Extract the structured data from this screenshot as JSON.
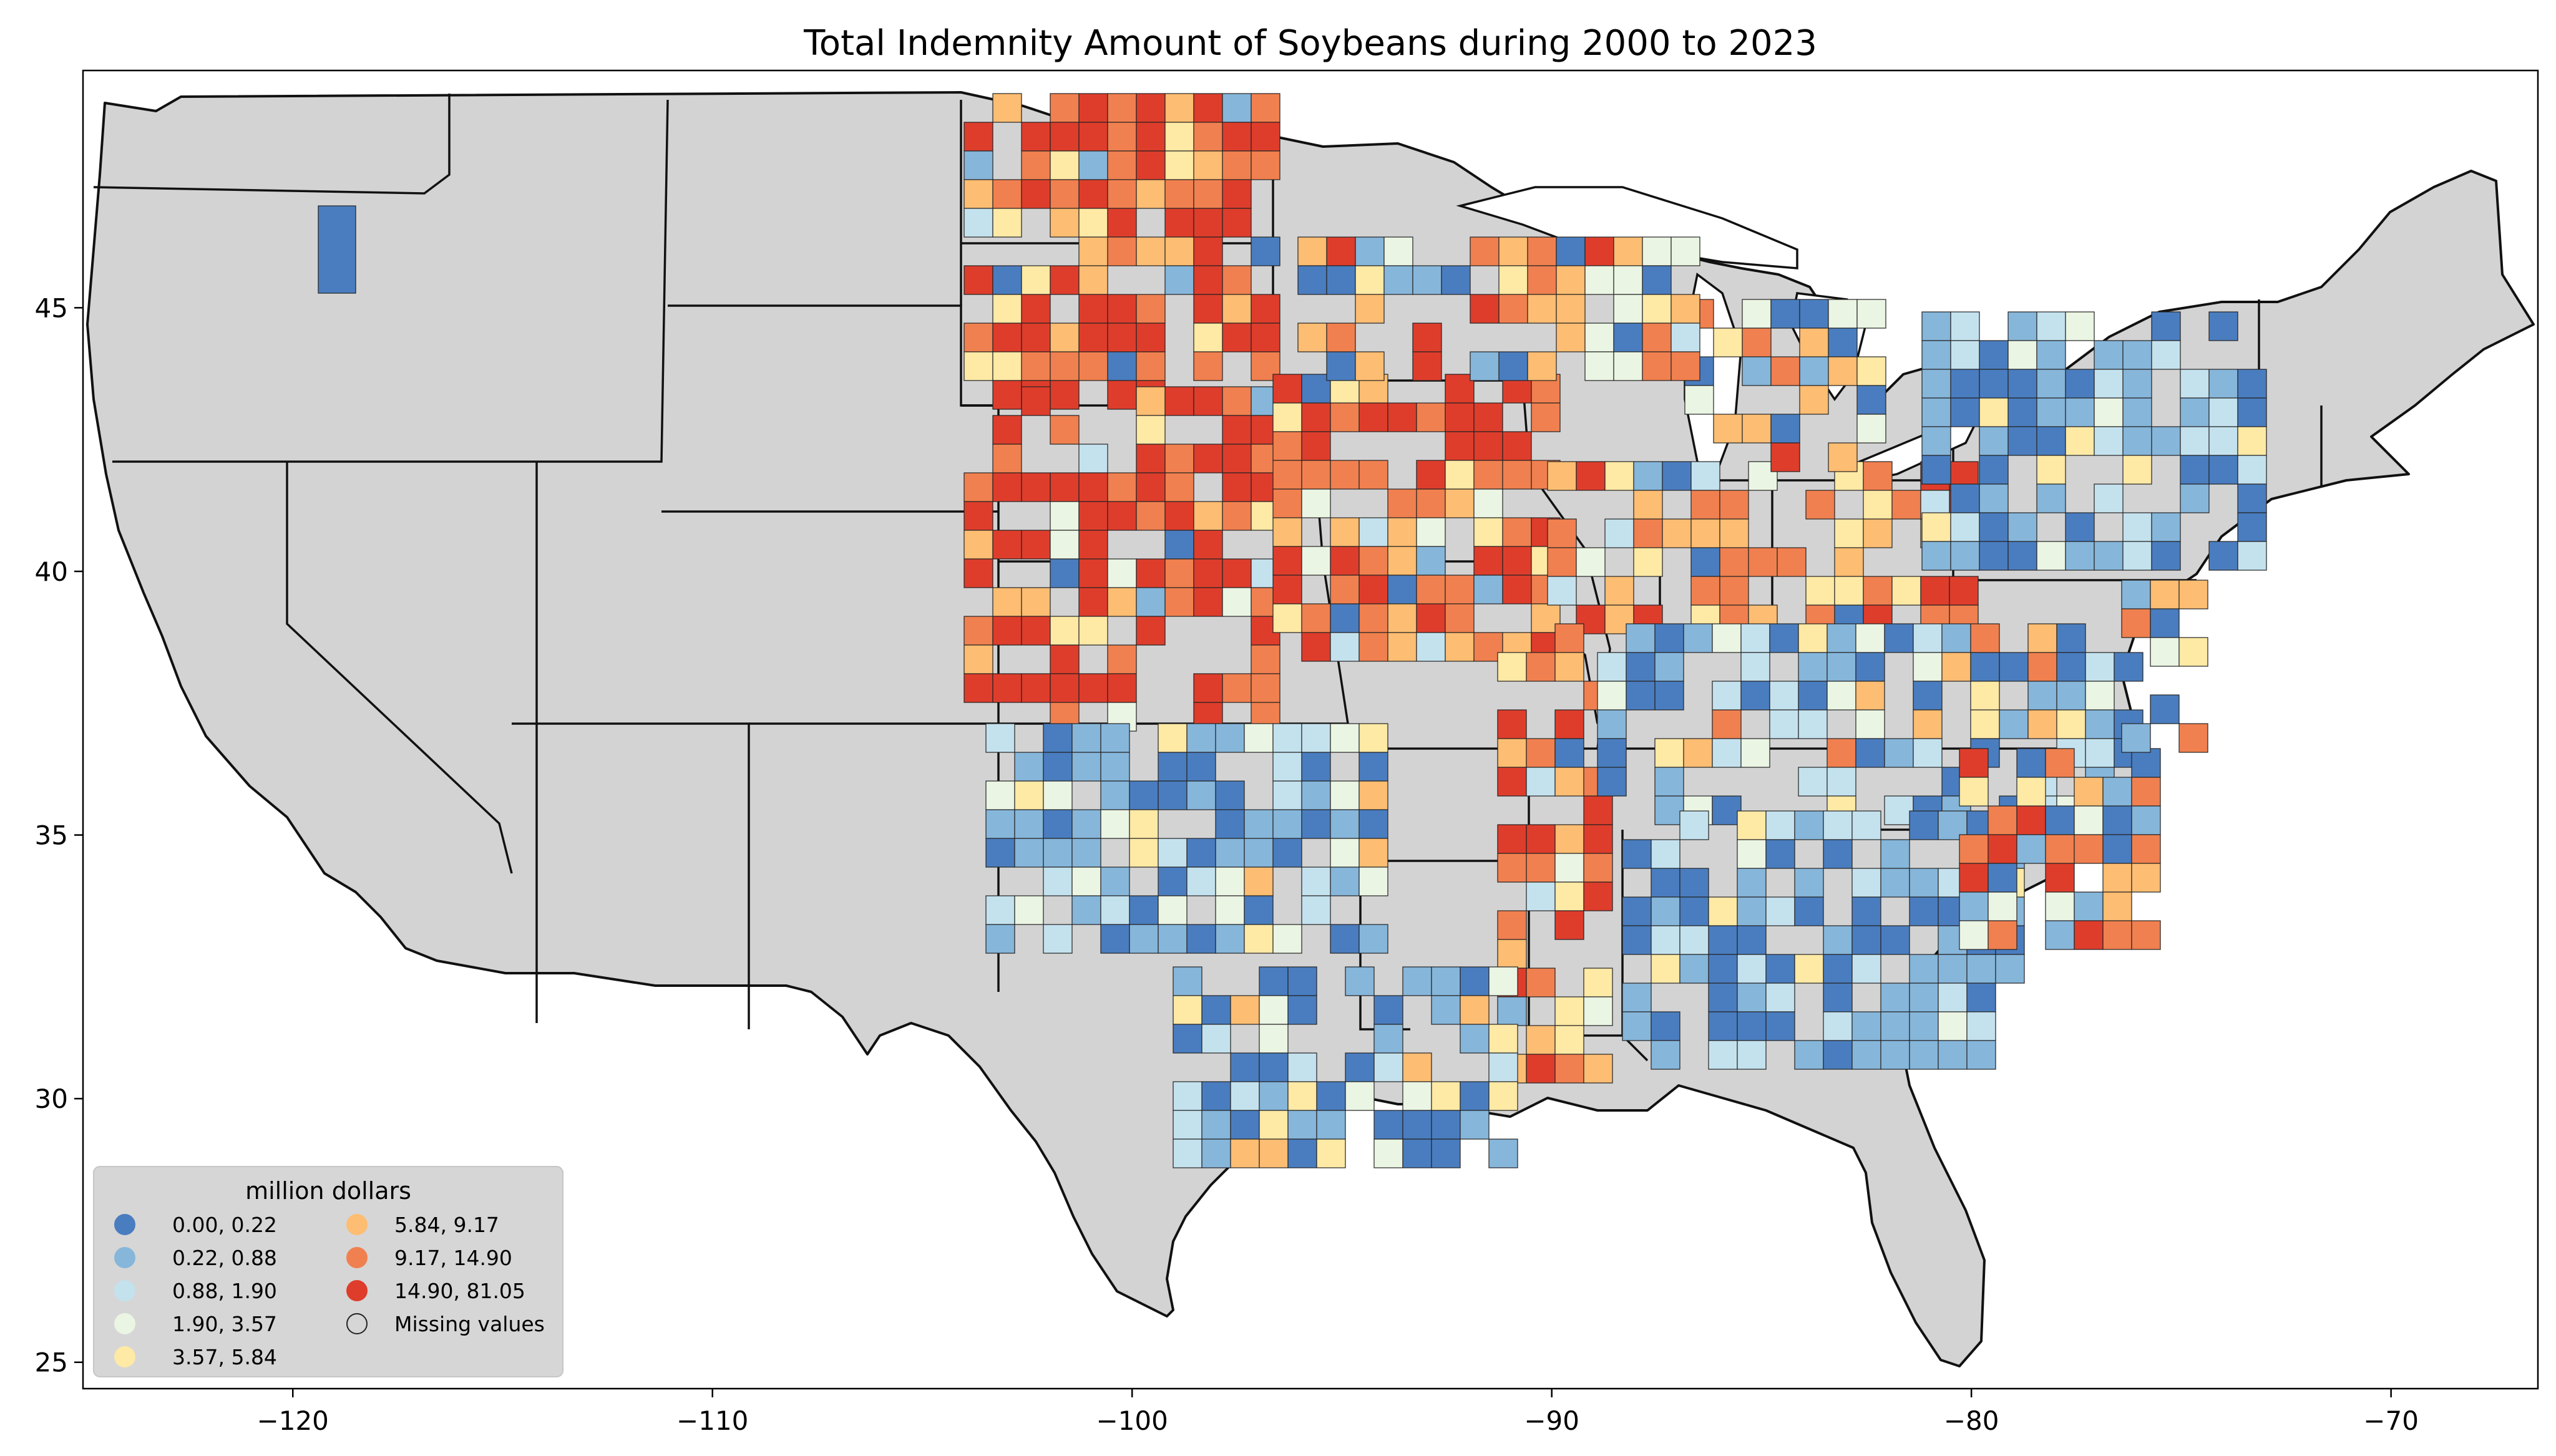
{
  "title": "Total Indemnity Amount of Soybeans during 2000 to 2023",
  "colors": {
    "land": "#d3d3d3",
    "border": "#222222",
    "class_1": "#4a7dbf",
    "class_2": "#86b6da",
    "class_3": "#c4e2ee",
    "class_4": "#eaf5e3",
    "class_5": "#fee9a5",
    "class_6": "#fdbd72",
    "class_7": "#f0804f",
    "class_8": "#de3d2c",
    "legend_bg": "#d4d4d4"
  },
  "map": {
    "projection": "plate-carree",
    "lon_range": [
      -125,
      -66.5
    ],
    "lat_range": [
      24.5,
      49.5
    ],
    "x_ticks": [
      "−120",
      "−110",
      "−100",
      "−90",
      "−80",
      "−70"
    ],
    "y_ticks": [
      "25",
      "30",
      "35",
      "40",
      "45"
    ],
    "x_tick_values": [
      -120,
      -110,
      -100,
      -90,
      -80,
      -70
    ],
    "y_tick_values": [
      25,
      30,
      35,
      40,
      45
    ]
  },
  "legend": {
    "title": "million dollars",
    "items": [
      {
        "label": "0.00,  0.22",
        "color": "#4a7dbf"
      },
      {
        "label": "0.22,  0.88",
        "color": "#86b6da"
      },
      {
        "label": "0.88,  1.90",
        "color": "#c4e2ee"
      },
      {
        "label": "1.90,  3.57",
        "color": "#eaf5e3"
      },
      {
        "label": "3.57,  5.84",
        "color": "#fee9a5"
      },
      {
        "label": "5.84,  9.17",
        "color": "#fdbd72"
      },
      {
        "label": "9.17, 14.90",
        "color": "#f0804f"
      },
      {
        "label": "14.90, 81.05",
        "color": "#de3d2c"
      },
      {
        "label": "Missing values",
        "color": "none"
      }
    ]
  }
}
